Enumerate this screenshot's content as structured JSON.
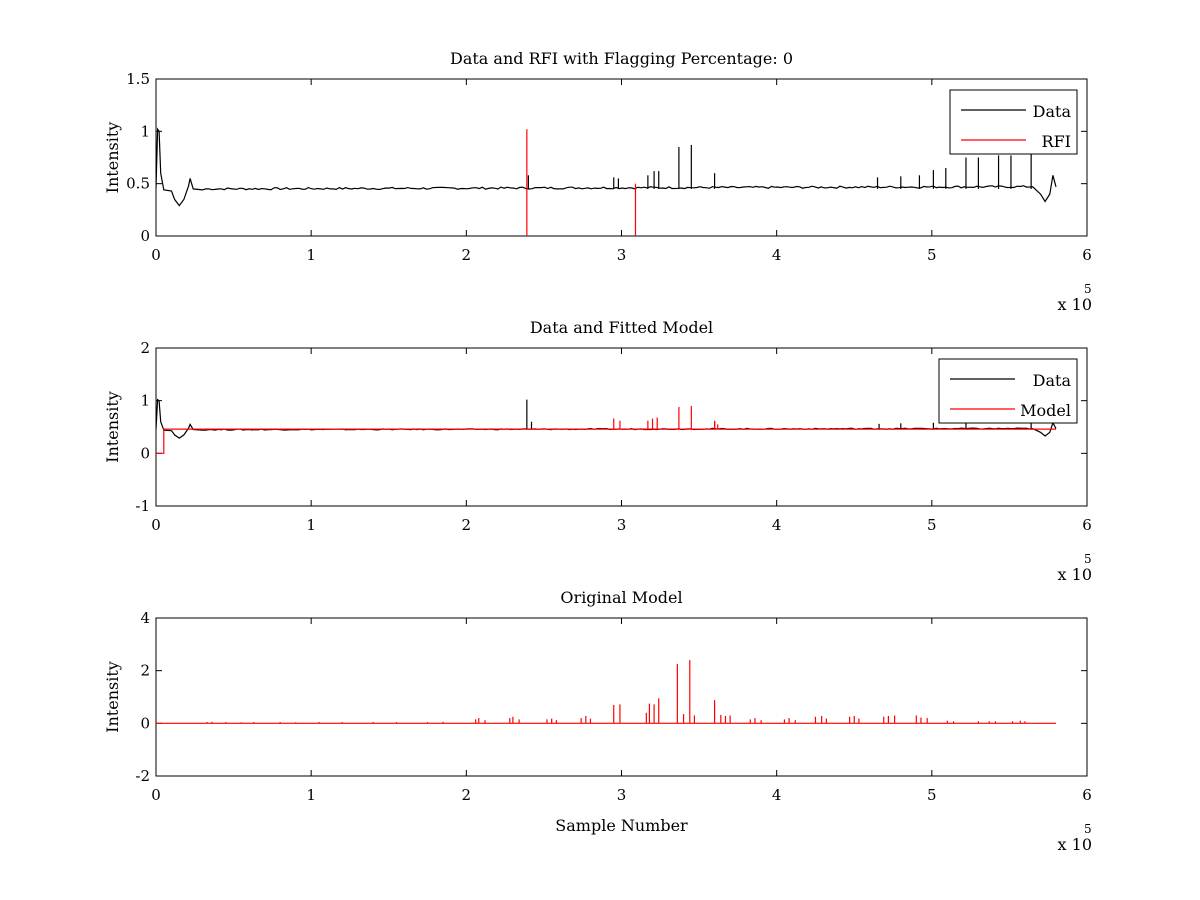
{
  "figure": {
    "background": "#ffffff"
  },
  "colors": {
    "data": "#000000",
    "rfi": "#ff0000",
    "model": "#ff0000",
    "axes": "#000000"
  },
  "chart_data": [
    {
      "type": "line",
      "title": "Data and RFI with Flagging Percentage: 0",
      "xlabel": "",
      "ylabel": "Intensity",
      "xlim": [
        0,
        6
      ],
      "ylim": [
        0,
        1.5
      ],
      "xticks": [
        "0",
        "1",
        "2",
        "3",
        "4",
        "5",
        "6"
      ],
      "yticks": [
        "0",
        "0.5",
        "1",
        "1.5"
      ],
      "x_multiplier": {
        "base": "x 10",
        "exponent": "5"
      },
      "legend": {
        "position": "top-right",
        "entries": [
          "Data",
          "RFI"
        ]
      },
      "series": [
        {
          "name": "Data",
          "color": "#000000",
          "baseline": 0.45,
          "points": [
            [
              0,
              0.46
            ],
            [
              0.01,
              1.02
            ],
            [
              0.02,
              1.0
            ],
            [
              0.03,
              0.6
            ],
            [
              0.05,
              0.44
            ],
            [
              0.1,
              0.43
            ],
            [
              0.12,
              0.35
            ],
            [
              0.15,
              0.29
            ],
            [
              0.18,
              0.35
            ],
            [
              0.21,
              0.48
            ],
            [
              0.22,
              0.55
            ],
            [
              0.24,
              0.45
            ],
            [
              0.3,
              0.44
            ],
            [
              5.65,
              0.47
            ],
            [
              5.7,
              0.4
            ],
            [
              5.73,
              0.33
            ],
            [
              5.76,
              0.4
            ],
            [
              5.78,
              0.58
            ],
            [
              5.8,
              0.47
            ]
          ],
          "spikes": [
            [
              2.4,
              0.58
            ],
            [
              2.95,
              0.56
            ],
            [
              2.98,
              0.55
            ],
            [
              3.17,
              0.58
            ],
            [
              3.21,
              0.62
            ],
            [
              3.24,
              0.62
            ],
            [
              3.37,
              0.85
            ],
            [
              3.45,
              0.87
            ],
            [
              3.6,
              0.6
            ],
            [
              4.65,
              0.56
            ],
            [
              4.8,
              0.57
            ],
            [
              4.92,
              0.58
            ],
            [
              5.01,
              0.63
            ],
            [
              5.09,
              0.65
            ],
            [
              5.22,
              0.75
            ],
            [
              5.3,
              0.75
            ],
            [
              5.43,
              0.77
            ],
            [
              5.51,
              0.77
            ],
            [
              5.64,
              0.78
            ]
          ]
        },
        {
          "name": "RFI",
          "color": "#ff0000",
          "spikes": [
            [
              2.39,
              1.02
            ],
            [
              3.09,
              0.5
            ]
          ]
        }
      ]
    },
    {
      "type": "line",
      "title": "Data and Fitted Model",
      "xlabel": "",
      "ylabel": "Intensity",
      "xlim": [
        0,
        6
      ],
      "ylim": [
        -1,
        2
      ],
      "xticks": [
        "0",
        "1",
        "2",
        "3",
        "4",
        "5",
        "6"
      ],
      "yticks": [
        "-1",
        "0",
        "1",
        "2"
      ],
      "x_multiplier": {
        "base": "x 10",
        "exponent": "5"
      },
      "legend": {
        "position": "top-right",
        "entries": [
          "Data",
          "Model"
        ]
      },
      "series": [
        {
          "name": "Data",
          "color": "#000000",
          "baseline": 0.45,
          "points": [
            [
              0,
              0.46
            ],
            [
              0.01,
              1.02
            ],
            [
              0.02,
              1.0
            ],
            [
              0.03,
              0.6
            ],
            [
              0.05,
              0.44
            ],
            [
              0.1,
              0.43
            ],
            [
              0.12,
              0.35
            ],
            [
              0.15,
              0.29
            ],
            [
              0.18,
              0.35
            ],
            [
              0.21,
              0.48
            ],
            [
              0.22,
              0.55
            ],
            [
              0.24,
              0.45
            ],
            [
              0.3,
              0.44
            ],
            [
              5.65,
              0.47
            ],
            [
              5.7,
              0.4
            ],
            [
              5.73,
              0.33
            ],
            [
              5.76,
              0.4
            ],
            [
              5.78,
              0.58
            ],
            [
              5.8,
              0.47
            ]
          ],
          "spikes": [
            [
              2.39,
              1.02
            ],
            [
              2.42,
              0.6
            ],
            [
              3.6,
              0.6
            ],
            [
              4.66,
              0.56
            ],
            [
              4.8,
              0.57
            ],
            [
              5.01,
              0.58
            ],
            [
              5.22,
              0.6
            ],
            [
              5.64,
              0.58
            ]
          ]
        },
        {
          "name": "Model",
          "color": "#ff0000",
          "baseline": 0.46,
          "points": [
            [
              0,
              0.0
            ],
            [
              0.05,
              0.0
            ],
            [
              0.05,
              0.46
            ],
            [
              5.8,
              0.46
            ]
          ],
          "spikes": [
            [
              2.95,
              0.66
            ],
            [
              2.99,
              0.62
            ],
            [
              3.17,
              0.62
            ],
            [
              3.2,
              0.66
            ],
            [
              3.23,
              0.68
            ],
            [
              3.37,
              0.88
            ],
            [
              3.45,
              0.9
            ],
            [
              3.6,
              0.62
            ],
            [
              3.62,
              0.55
            ]
          ]
        }
      ]
    },
    {
      "type": "line",
      "title": "Original Model",
      "xlabel": "Sample Number",
      "ylabel": "Intensity",
      "xlim": [
        0,
        6
      ],
      "ylim": [
        -2,
        4
      ],
      "xticks": [
        "0",
        "1",
        "2",
        "3",
        "4",
        "5",
        "6"
      ],
      "yticks": [
        "-2",
        "0",
        "2",
        "4"
      ],
      "x_multiplier": {
        "base": "x 10",
        "exponent": "5"
      },
      "legend": null,
      "series": [
        {
          "color": "#ff0000",
          "baseline": 0.0,
          "points": [
            [
              0,
              0.0
            ],
            [
              5.8,
              0.0
            ]
          ],
          "spikes": [
            [
              0.33,
              0.05
            ],
            [
              0.36,
              0.06
            ],
            [
              0.45,
              0.05
            ],
            [
              0.55,
              0.04
            ],
            [
              0.63,
              0.05
            ],
            [
              0.8,
              0.05
            ],
            [
              0.9,
              0.04
            ],
            [
              1.05,
              0.05
            ],
            [
              1.2,
              0.05
            ],
            [
              1.4,
              0.05
            ],
            [
              1.55,
              0.05
            ],
            [
              1.75,
              0.05
            ],
            [
              1.85,
              0.06
            ],
            [
              2.06,
              0.15
            ],
            [
              2.08,
              0.2
            ],
            [
              2.12,
              0.12
            ],
            [
              2.28,
              0.2
            ],
            [
              2.3,
              0.25
            ],
            [
              2.34,
              0.15
            ],
            [
              2.52,
              0.15
            ],
            [
              2.55,
              0.18
            ],
            [
              2.58,
              0.12
            ],
            [
              2.74,
              0.2
            ],
            [
              2.77,
              0.28
            ],
            [
              2.8,
              0.18
            ],
            [
              2.95,
              0.7
            ],
            [
              2.99,
              0.72
            ],
            [
              3.16,
              0.4
            ],
            [
              3.18,
              0.75
            ],
            [
              3.21,
              0.72
            ],
            [
              3.24,
              0.95
            ],
            [
              3.36,
              2.25
            ],
            [
              3.4,
              0.35
            ],
            [
              3.44,
              2.4
            ],
            [
              3.47,
              0.3
            ],
            [
              3.6,
              0.88
            ],
            [
              3.64,
              0.32
            ],
            [
              3.67,
              0.28
            ],
            [
              3.7,
              0.3
            ],
            [
              3.83,
              0.15
            ],
            [
              3.86,
              0.2
            ],
            [
              3.9,
              0.12
            ],
            [
              4.05,
              0.15
            ],
            [
              4.08,
              0.2
            ],
            [
              4.12,
              0.12
            ],
            [
              4.25,
              0.25
            ],
            [
              4.29,
              0.28
            ],
            [
              4.32,
              0.18
            ],
            [
              4.47,
              0.25
            ],
            [
              4.5,
              0.28
            ],
            [
              4.53,
              0.18
            ],
            [
              4.69,
              0.25
            ],
            [
              4.72,
              0.28
            ],
            [
              4.76,
              0.3
            ],
            [
              4.9,
              0.3
            ],
            [
              4.93,
              0.22
            ],
            [
              4.97,
              0.2
            ],
            [
              5.1,
              0.1
            ],
            [
              5.14,
              0.08
            ],
            [
              5.3,
              0.08
            ],
            [
              5.37,
              0.08
            ],
            [
              5.41,
              0.08
            ],
            [
              5.52,
              0.08
            ],
            [
              5.57,
              0.1
            ],
            [
              5.6,
              0.08
            ]
          ]
        }
      ]
    }
  ]
}
